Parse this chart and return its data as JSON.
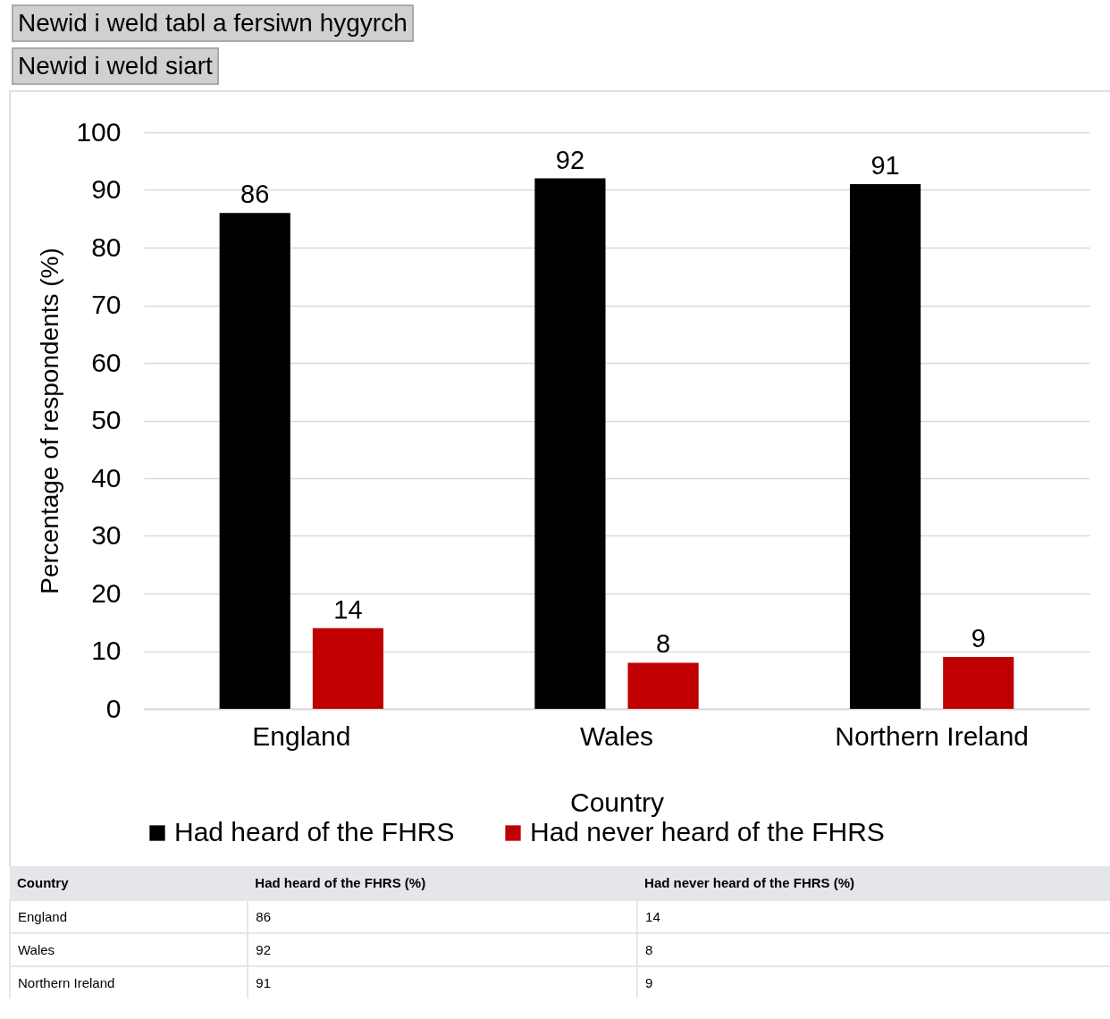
{
  "chart_data": {
    "type": "bar",
    "xlabel": "Country",
    "ylabel": "Percentage of respondents (%)",
    "categories": [
      "England",
      "Wales",
      "Northern Ireland"
    ],
    "series": [
      {
        "name": "Had heard of the FHRS",
        "color": "#000000",
        "values": [
          86,
          92,
          91
        ],
        "value_labels": [
          "86",
          "92",
          "91"
        ]
      },
      {
        "name": "Had never heard of the FHRS",
        "color": "#c00000",
        "values": [
          14,
          8,
          9
        ],
        "value_labels": [
          "14",
          "8",
          "9"
        ]
      }
    ],
    "ylim": [
      0,
      100
    ],
    "yticks": [
      0,
      10,
      20,
      30,
      40,
      50,
      60,
      70,
      80,
      90,
      100
    ],
    "grid": "y",
    "legend": "bottom",
    "annotations": [
      "Newid i weld tabl a fersiwn hygyrch",
      "Newid i weld siart",
      "Had heard of the FHRS (%)",
      "Had never heard of the FHRS (%)"
    ]
  }
}
